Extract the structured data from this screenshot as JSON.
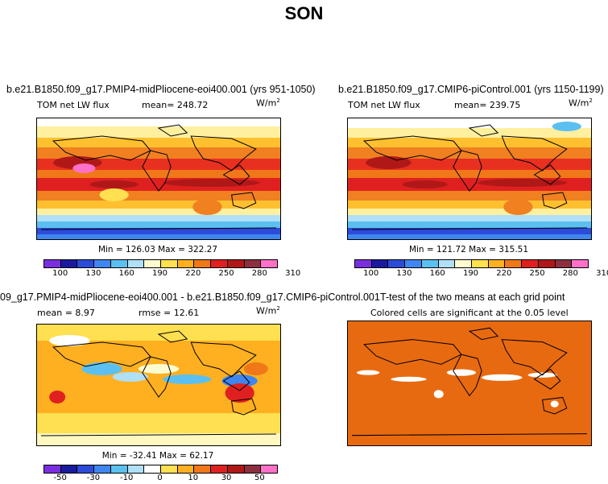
{
  "figure": {
    "season": "SON"
  },
  "panels": {
    "top_left": {
      "title": "b.e21.B1850.f09_g17.PMIP4-midPliocene-eoi400.001 (yrs 951-1050)",
      "variable": "TOM net LW flux",
      "stat": "mean= 248.72",
      "units": "W/m",
      "units_exp": "2",
      "minmax": "Min = 126.03  Max = 322.27"
    },
    "top_right": {
      "title": "b.e21.B1850.f09_g17.CMIP6-piControl.001 (yrs 1150-1199)",
      "variable": "TOM net LW flux",
      "stat": "mean= 239.75",
      "units": "W/m",
      "units_exp": "2",
      "minmax": "Min = 121.72  Max = 315.51"
    },
    "bottom_left": {
      "title": "09_g17.PMIP4-midPliocene-eoi400.001 - b.e21.B1850.f09_g17.CMIP6-piControl.001",
      "stat_mean": "mean =    8.97",
      "stat_rmse": "rmse =   12.61",
      "units": "W/m",
      "units_exp": "2",
      "minmax": "Min = -32.41  Max = 62.17"
    },
    "bottom_right": {
      "title": "T-test of the two means at each grid point",
      "note": "Colored cells are significant at the 0.05 level"
    }
  },
  "colorbars": {
    "abs": {
      "colors": [
        "#7b2ee0",
        "#1a1aa0",
        "#2c4bd8",
        "#3f86f0",
        "#5bc0f0",
        "#b0e0f8",
        "#fffbd0",
        "#ffe050",
        "#ffb020",
        "#f07818",
        "#e02020",
        "#b01818",
        "#8c3040",
        "#ff70c8"
      ],
      "labels": [
        "100",
        "130",
        "160",
        "190",
        "220",
        "250",
        "280",
        "310"
      ]
    },
    "diff": {
      "colors": [
        "#7b2ee0",
        "#1a1aa0",
        "#2c4bd8",
        "#3f86f0",
        "#5bc0f0",
        "#b0e0f8",
        "#ffffff",
        "#ffe050",
        "#ffb020",
        "#f07818",
        "#e02020",
        "#b01818",
        "#8c3040",
        "#ff70c8"
      ],
      "labels": [
        "-50",
        "-30",
        "-10",
        "0",
        "10",
        "30",
        "50"
      ]
    }
  }
}
